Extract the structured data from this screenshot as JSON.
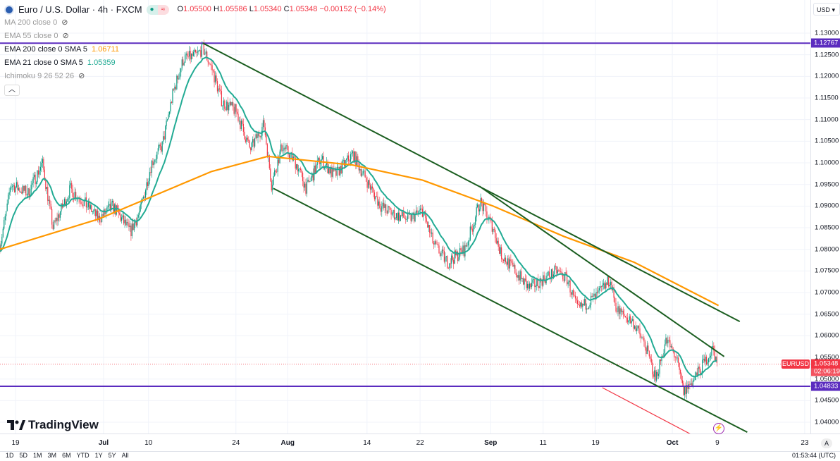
{
  "header": {
    "title": "Euro / U.S. Dollar · 4h · FXCM",
    "ohlc": {
      "o_label": "O",
      "o": "1.05500",
      "h_label": "H",
      "h": "1.05586",
      "l_label": "L",
      "l": "1.05340",
      "c_label": "C",
      "c": "1.05348",
      "change": "−0.00152 (−0.14%)"
    },
    "pill_icon": "≈"
  },
  "indicators": [
    {
      "label": "MA 200 close 0",
      "value": null,
      "hidden": true
    },
    {
      "label": "EMA 55 close 0",
      "value": null,
      "hidden": true
    },
    {
      "label": "EMA 200 close 0 SMA 5",
      "value": "1.06711",
      "hidden": false
    },
    {
      "label": "EMA 21 close 0 SMA 5",
      "value": "1.05359",
      "hidden": false
    },
    {
      "label": "Ichimoku 9 26 52 26",
      "value": null,
      "hidden": true
    }
  ],
  "currency": "USD",
  "symbol_tag": "EURUSD",
  "current_price": "1.05348",
  "countdown": "02:06:19",
  "auto_label": "A",
  "logo": "TradingView",
  "bottom_bar": [
    "1D",
    "5D",
    "1M",
    "3M",
    "6M",
    "YTD",
    "1Y",
    "5Y",
    "All"
  ],
  "bottom_time": "01:53:44 (UTC)",
  "colors": {
    "up": "#089981",
    "down": "#f23645",
    "ema21": "#22ab94",
    "ema200": "#ff9800",
    "hline": "#5b2cbf",
    "trend": "#1b5e20",
    "red": "#f23645"
  },
  "chart_data": {
    "type": "candlestick",
    "title": "Euro / U.S. Dollar · 4h · FXCM",
    "ylim": [
      1.036,
      1.133
    ],
    "y_ticks": [
      "1.13000",
      "1.12500",
      "1.12000",
      "1.11500",
      "1.11000",
      "1.10500",
      "1.10000",
      "1.09500",
      "1.09000",
      "1.08500",
      "1.08000",
      "1.07500",
      "1.07000",
      "1.06500",
      "1.06000",
      "1.05500",
      "1.05000",
      "1.04500",
      "1.04000"
    ],
    "x_ticks": [
      {
        "label": "19",
        "day": 0
      },
      {
        "label": "Jul",
        "day": 14.1
      },
      {
        "label": "10",
        "day": 21.3
      },
      {
        "label": "24",
        "day": 35.3
      },
      {
        "label": "Aug",
        "day": 43.6
      },
      {
        "label": "14",
        "day": 56.3
      },
      {
        "label": "22",
        "day": 64.8
      },
      {
        "label": "Sep",
        "day": 76.1
      },
      {
        "label": "11",
        "day": 84.5
      },
      {
        "label": "19",
        "day": 92.9
      },
      {
        "label": "Oct",
        "day": 105.2
      },
      {
        "label": "9",
        "day": 112.4
      },
      {
        "label": "23",
        "day": 126.4
      }
    ],
    "price_path": [
      [
        -2.5,
        1.081
      ],
      [
        -1.4,
        1.089
      ],
      [
        -0.8,
        1.095
      ],
      [
        2,
        1.093
      ],
      [
        4.3,
        1.1
      ],
      [
        6,
        1.085
      ],
      [
        8.8,
        1.094
      ],
      [
        12.2,
        1.089
      ],
      [
        13.3,
        1.087
      ],
      [
        15.6,
        1.09
      ],
      [
        18.4,
        1.084
      ],
      [
        20,
        1.089
      ],
      [
        21.8,
        1.1
      ],
      [
        23.5,
        1.104
      ],
      [
        25.2,
        1.116
      ],
      [
        26.9,
        1.124
      ],
      [
        29.1,
        1.125
      ],
      [
        30,
        1.1265
      ],
      [
        31.4,
        1.122
      ],
      [
        33.1,
        1.114
      ],
      [
        35.3,
        1.112
      ],
      [
        37.6,
        1.103
      ],
      [
        39.8,
        1.109
      ],
      [
        41,
        1.095
      ],
      [
        42.7,
        1.104
      ],
      [
        44.9,
        1.1
      ],
      [
        46.6,
        1.094
      ],
      [
        48.8,
        1.101
      ],
      [
        51.1,
        1.097
      ],
      [
        54,
        1.102
      ],
      [
        56.2,
        1.096
      ],
      [
        58.5,
        1.09
      ],
      [
        60.7,
        1.088
      ],
      [
        63,
        1.087
      ],
      [
        65.2,
        1.089
      ],
      [
        67,
        1.081
      ],
      [
        69.2,
        1.077
      ],
      [
        72,
        1.08
      ],
      [
        74.4,
        1.091
      ],
      [
        76.5,
        1.085
      ],
      [
        77.7,
        1.079
      ],
      [
        80,
        1.075
      ],
      [
        82.2,
        1.071
      ],
      [
        84.4,
        1.073
      ],
      [
        86.7,
        1.075
      ],
      [
        88.4,
        1.073
      ],
      [
        90,
        1.066
      ],
      [
        93,
        1.069
      ],
      [
        95.2,
        1.073
      ],
      [
        96.3,
        1.066
      ],
      [
        99,
        1.063
      ],
      [
        100.8,
        1.058
      ],
      [
        102.5,
        1.05
      ],
      [
        104.2,
        1.059
      ],
      [
        105.8,
        1.055
      ],
      [
        107,
        1.047
      ],
      [
        108.7,
        1.05
      ],
      [
        110.4,
        1.054
      ],
      [
        111.7,
        1.057
      ],
      [
        112.4,
        1.0535
      ]
    ],
    "ema200_path": [
      [
        -2.5,
        1.08
      ],
      [
        13.3,
        1.087
      ],
      [
        31.4,
        1.098
      ],
      [
        40.4,
        1.1015
      ],
      [
        54,
        1.0995
      ],
      [
        65.2,
        1.096
      ],
      [
        76.5,
        1.09
      ],
      [
        87.8,
        1.083
      ],
      [
        99.1,
        1.077
      ],
      [
        112.6,
        1.067
      ]
    ],
    "horizontal_lines": [
      {
        "price": 1.12767,
        "label": "1.12767"
      },
      {
        "price": 1.04833,
        "label": "1.04833"
      }
    ],
    "trend_lines": [
      {
        "name": "channel-upper",
        "points": [
          [
            30,
            1.1277
          ],
          [
            116,
            1.0633
          ]
        ],
        "color": "trend"
      },
      {
        "name": "channel-inner",
        "points": [
          [
            74.3,
            1.0946
          ],
          [
            113.5,
            1.0552
          ]
        ],
        "color": "trend"
      },
      {
        "name": "channel-lower",
        "points": [
          [
            41.3,
            1.0941
          ],
          [
            117.2,
            1.0377
          ]
        ],
        "color": "trend"
      },
      {
        "name": "red-line",
        "points": [
          [
            94,
            1.048
          ],
          [
            109,
            1.0366
          ]
        ],
        "color": "red"
      }
    ]
  }
}
